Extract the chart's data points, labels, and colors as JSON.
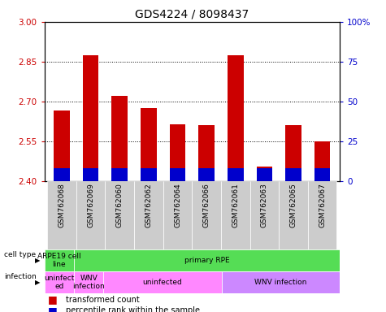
{
  "title": "GDS4224 / 8098437",
  "samples": [
    "GSM762068",
    "GSM762069",
    "GSM762060",
    "GSM762062",
    "GSM762064",
    "GSM762066",
    "GSM762061",
    "GSM762063",
    "GSM762065",
    "GSM762067"
  ],
  "red_values": [
    2.665,
    2.875,
    2.72,
    2.675,
    2.615,
    2.61,
    2.875,
    2.455,
    2.61,
    2.55
  ],
  "blue_pcts": [
    8,
    8,
    8,
    8,
    8,
    8,
    8,
    8,
    8,
    8
  ],
  "ymin": 2.4,
  "ymax": 3.0,
  "y_ticks_red": [
    2.4,
    2.55,
    2.7,
    2.85,
    3.0
  ],
  "y_ticks_blue": [
    0,
    25,
    50,
    75,
    100
  ],
  "bar_color": "#cc0000",
  "blue_color": "#0000cc",
  "cell_type_groups": [
    {
      "label": "ARPE19 cell\nline",
      "start": 0,
      "end": 1,
      "color": "#55dd55"
    },
    {
      "label": "primary RPE",
      "start": 1,
      "end": 10,
      "color": "#55dd55"
    }
  ],
  "infection_groups": [
    {
      "label": "uninfect\ned",
      "start": 0,
      "end": 1,
      "color": "#ff88ff"
    },
    {
      "label": "WNV\ninfection",
      "start": 1,
      "end": 2,
      "color": "#ff88ff"
    },
    {
      "label": "uninfected",
      "start": 2,
      "end": 6,
      "color": "#ff88ff"
    },
    {
      "label": "WNV infection",
      "start": 6,
      "end": 10,
      "color": "#cc88ff"
    }
  ],
  "tick_color_left": "#cc0000",
  "tick_color_right": "#0000cc",
  "label_bg_color": "#cccccc"
}
